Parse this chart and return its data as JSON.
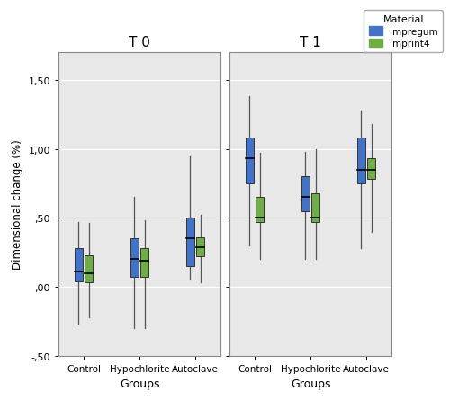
{
  "panels": [
    "T 0",
    "T 1"
  ],
  "panel_keys": [
    "T0",
    "T1"
  ],
  "groups": [
    "Control",
    "Hypochlorite",
    "Autoclave"
  ],
  "materials": [
    "Impregum",
    "Imprint4"
  ],
  "colors": {
    "Impregum": "#4472C4",
    "Imprint4": "#70AD47"
  },
  "ylabel": "Dimensional change (%)",
  "xlabel": "Groups",
  "ylim": [
    -0.5,
    1.7
  ],
  "yticks": [
    -0.5,
    0.0,
    0.5,
    1.0,
    1.5
  ],
  "yticklabels": [
    "-,50",
    ",00",
    ",50",
    "1,00",
    "1,50"
  ],
  "background_color": "#E8E8E8",
  "box_data": {
    "T0": {
      "Control": {
        "Impregum": {
          "whislo": -0.27,
          "q1": 0.04,
          "med": 0.11,
          "q3": 0.28,
          "whishi": 0.47
        },
        "Imprint4": {
          "whislo": -0.22,
          "q1": 0.03,
          "med": 0.1,
          "q3": 0.23,
          "whishi": 0.46
        }
      },
      "Hypochlorite": {
        "Impregum": {
          "whislo": -0.3,
          "q1": 0.07,
          "med": 0.2,
          "q3": 0.35,
          "whishi": 0.65
        },
        "Imprint4": {
          "whislo": -0.3,
          "q1": 0.07,
          "med": 0.19,
          "q3": 0.28,
          "whishi": 0.48
        }
      },
      "Autoclave": {
        "Impregum": {
          "whislo": 0.05,
          "q1": 0.15,
          "med": 0.35,
          "q3": 0.5,
          "whishi": 0.95
        },
        "Imprint4": {
          "whislo": 0.03,
          "q1": 0.22,
          "med": 0.29,
          "q3": 0.36,
          "whishi": 0.52
        }
      }
    },
    "T1": {
      "Control": {
        "Impregum": {
          "whislo": 0.3,
          "q1": 0.75,
          "med": 0.93,
          "q3": 1.08,
          "whishi": 1.38
        },
        "Imprint4": {
          "whislo": 0.2,
          "q1": 0.47,
          "med": 0.5,
          "q3": 0.65,
          "whishi": 0.97
        }
      },
      "Hypochlorite": {
        "Impregum": {
          "whislo": 0.2,
          "q1": 0.55,
          "med": 0.65,
          "q3": 0.8,
          "whishi": 0.98
        },
        "Imprint4": {
          "whislo": 0.2,
          "q1": 0.47,
          "med": 0.5,
          "q3": 0.68,
          "whishi": 1.0
        }
      },
      "Autoclave": {
        "Impregum": {
          "whislo": 0.28,
          "q1": 0.75,
          "med": 0.85,
          "q3": 1.08,
          "whishi": 1.28
        },
        "Imprint4": {
          "whislo": 0.4,
          "q1": 0.78,
          "med": 0.85,
          "q3": 0.93,
          "whishi": 1.18
        }
      }
    }
  }
}
